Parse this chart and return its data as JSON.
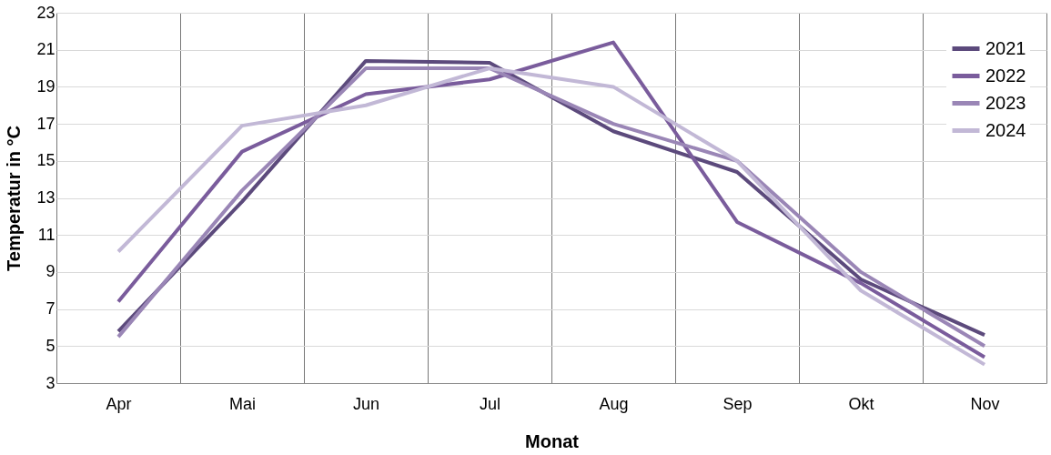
{
  "chart_data": {
    "type": "line",
    "xlabel": "Monat",
    "ylabel": "Temperatur in °C",
    "categories": [
      "Apr",
      "Mai",
      "Jun",
      "Jul",
      "Aug",
      "Sep",
      "Okt",
      "Nov"
    ],
    "series": [
      {
        "name": "2021",
        "color": "#5c4a7c",
        "values": [
          5.8,
          12.8,
          20.4,
          20.3,
          16.6,
          14.4,
          8.6,
          5.6
        ]
      },
      {
        "name": "2022",
        "color": "#7a5c9c",
        "values": [
          7.4,
          15.5,
          18.6,
          19.4,
          21.4,
          11.7,
          8.4,
          4.4
        ]
      },
      {
        "name": "2023",
        "color": "#9a86b6",
        "values": [
          5.5,
          13.4,
          20.0,
          20.0,
          17.0,
          15.0,
          9.0,
          5.0
        ]
      },
      {
        "name": "2024",
        "color": "#c2b8d6",
        "values": [
          10.1,
          16.9,
          18.0,
          20.0,
          19.0,
          15.0,
          8.0,
          4.0
        ]
      }
    ],
    "ylim": [
      3,
      23
    ],
    "yticks": [
      3,
      5,
      7,
      9,
      11,
      13,
      15,
      17,
      19,
      21,
      23
    ],
    "grid": true,
    "legend": "top right",
    "marker": "none",
    "line_style": "solid"
  }
}
